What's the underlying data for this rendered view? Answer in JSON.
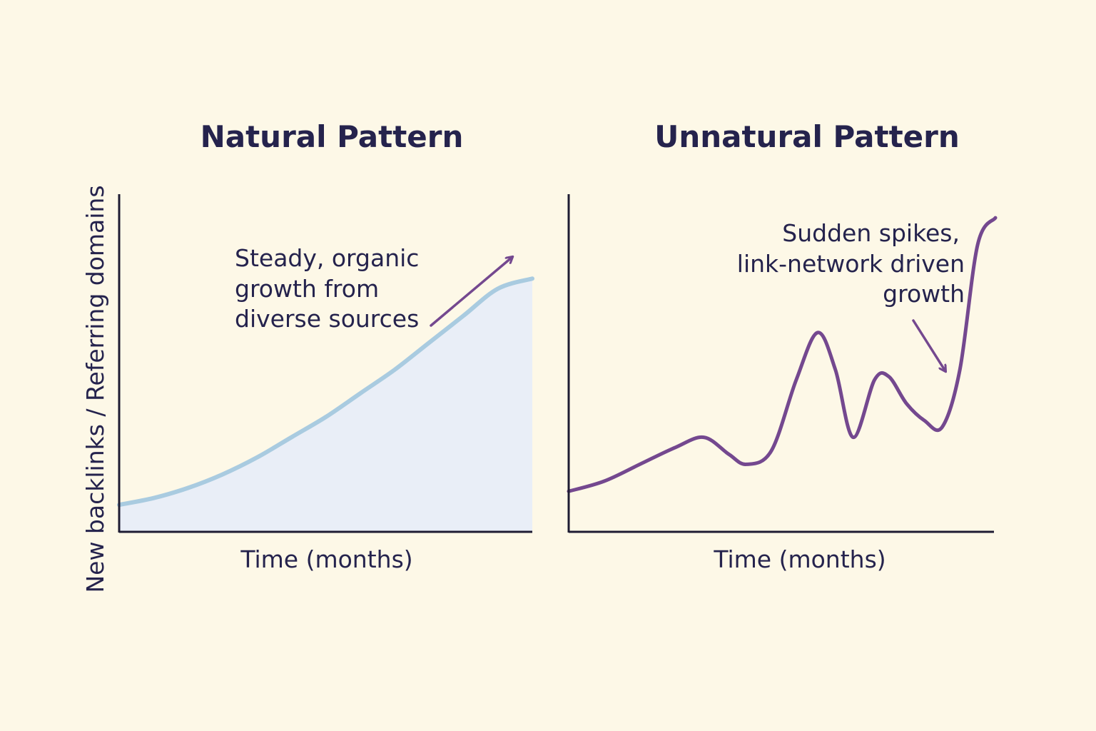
{
  "colors": {
    "background": "#fdf8e7",
    "text": "#25234d",
    "axis": "#1e1c33",
    "natural_line": "#a9cbe0",
    "natural_fill": "#e9eef7",
    "unnatural_line": "#74488f",
    "arrow": "#74488f"
  },
  "shared_ylabel": "New backlinks / Referring domains",
  "chart_data": [
    {
      "type": "area",
      "title": "Natural Pattern",
      "xlabel": "Time (months)",
      "ylabel": "New backlinks / Referring domains",
      "grid": false,
      "xlim": [
        0,
        12
      ],
      "ylim": [
        0,
        100
      ],
      "x": [
        0,
        1,
        2,
        3,
        4,
        5,
        6,
        7,
        8,
        9,
        10,
        11,
        12
      ],
      "series": [
        {
          "values": [
            8,
            10,
            13,
            17,
            22,
            28,
            34,
            41,
            48,
            56,
            64,
            72,
            75
          ]
        }
      ],
      "annotation": {
        "lines": [
          "Steady, organic",
          "growth from",
          "diverse sources"
        ]
      }
    },
    {
      "type": "line",
      "title": "Unnatural Pattern",
      "xlabel": "Time (months)",
      "grid": false,
      "xlim": [
        0,
        12
      ],
      "ylim": [
        0,
        100
      ],
      "x": [
        0,
        1,
        2,
        3,
        3.8,
        4.5,
        5,
        5.7,
        6.4,
        7,
        7.5,
        8,
        8.6,
        9,
        9.5,
        10,
        10.5,
        11,
        11.5,
        12
      ],
      "series": [
        {
          "values": [
            12,
            15,
            20,
            25,
            28,
            23,
            20,
            24,
            45,
            59,
            48,
            28,
            45,
            46,
            38,
            33,
            31,
            48,
            85,
            93
          ]
        }
      ],
      "annotation": {
        "lines": [
          "Sudden spikes,",
          "link-network driven",
          "growth"
        ]
      }
    }
  ]
}
